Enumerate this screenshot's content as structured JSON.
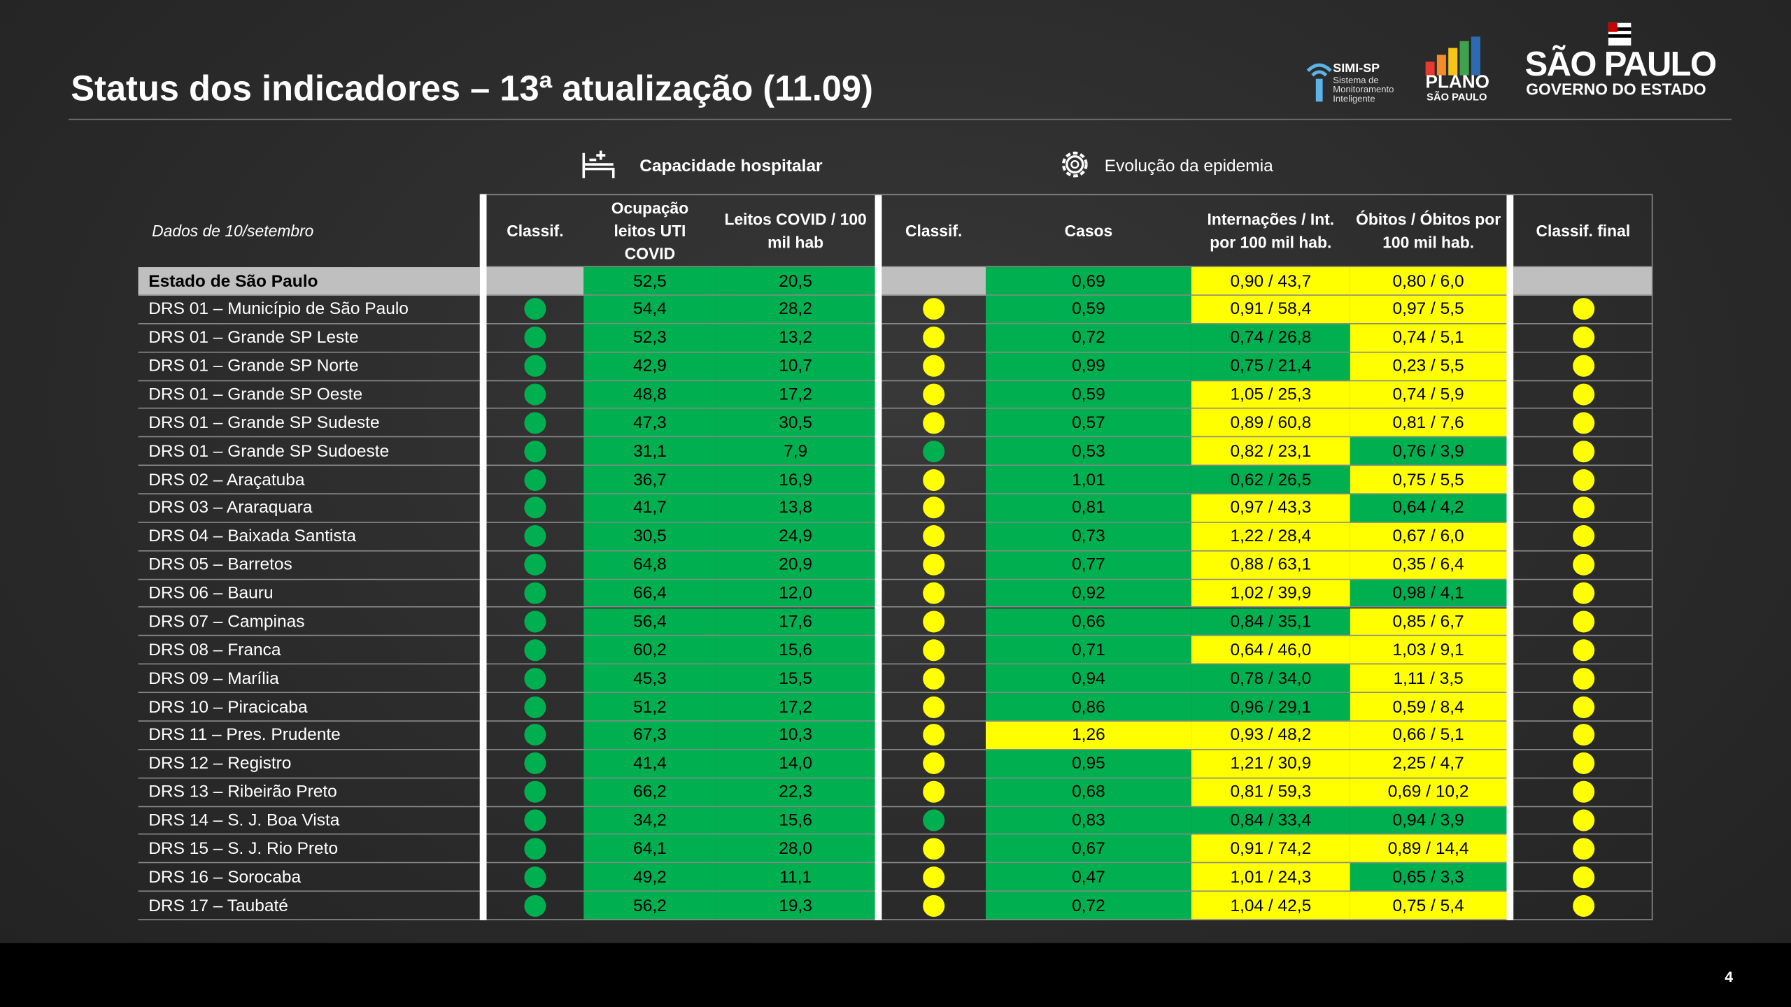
{
  "header": {
    "title": "Status dos indicadores – 13ª atualização (11.09)",
    "logos": {
      "simi": "SIMI-SP",
      "simi_sub": "Sistema de Monitoramento Inteligente",
      "plano": "PLANO",
      "plano_sub": "SÃO PAULO",
      "gov": "SÃO PAULO",
      "gov_sub": "GOVERNO DO ESTADO"
    }
  },
  "groups": {
    "hospital": "Capacidade hospitalar",
    "epidemia": "Evolução da epidemia"
  },
  "table": {
    "date_label": "Dados de 10/setembro",
    "columns": [
      "Classif.",
      "Ocupação leitos UTI COVID",
      "Leitos COVID / 100 mil hab",
      "Classif.",
      "Casos",
      "Internações / Int. por 100 mil hab.",
      "Óbitos / Óbitos por 100 mil hab.",
      "Classif. final"
    ],
    "blank_fill": "#bfbfbf",
    "state_row": {
      "name": "Estado de São Paulo",
      "values": [
        "52,5",
        "20,5",
        "0,69",
        "0,90 / 43,7",
        "0,80 / 6,0"
      ],
      "fills": [
        "#00b050",
        "#00b050",
        "#00b050",
        "#ffff00",
        "#ffff00"
      ]
    },
    "rows": [
      {
        "name": "DRS 01 – Município de São Paulo",
        "values": [
          "54,4",
          "28,2",
          "0,59",
          "0,91 / 58,4",
          "0,97 / 5,5"
        ],
        "fills": [
          "#00b050",
          "#00b050",
          "#00b050",
          "#ffff00",
          "#ffff00"
        ],
        "dots": [
          "#00b050",
          "#ffff00",
          "#ffff00"
        ]
      },
      {
        "name": "DRS 01 – Grande SP Leste",
        "values": [
          "52,3",
          "13,2",
          "0,72",
          "0,74 / 26,8",
          "0,74 / 5,1"
        ],
        "fills": [
          "#00b050",
          "#00b050",
          "#00b050",
          "#00b050",
          "#ffff00"
        ],
        "dots": [
          "#00b050",
          "#ffff00",
          "#ffff00"
        ]
      },
      {
        "name": "DRS 01 – Grande SP Norte",
        "values": [
          "42,9",
          "10,7",
          "0,99",
          "0,75 / 21,4",
          "0,23 / 5,5"
        ],
        "fills": [
          "#00b050",
          "#00b050",
          "#00b050",
          "#00b050",
          "#ffff00"
        ],
        "dots": [
          "#00b050",
          "#ffff00",
          "#ffff00"
        ]
      },
      {
        "name": "DRS 01 – Grande SP Oeste",
        "values": [
          "48,8",
          "17,2",
          "0,59",
          "1,05 / 25,3",
          "0,74 / 5,9"
        ],
        "fills": [
          "#00b050",
          "#00b050",
          "#00b050",
          "#ffff00",
          "#ffff00"
        ],
        "dots": [
          "#00b050",
          "#ffff00",
          "#ffff00"
        ]
      },
      {
        "name": "DRS 01 – Grande SP Sudeste",
        "values": [
          "47,3",
          "30,5",
          "0,57",
          "0,89 / 60,8",
          "0,81 / 7,6"
        ],
        "fills": [
          "#00b050",
          "#00b050",
          "#00b050",
          "#ffff00",
          "#ffff00"
        ],
        "dots": [
          "#00b050",
          "#ffff00",
          "#ffff00"
        ]
      },
      {
        "name": "DRS 01 – Grande SP Sudoeste",
        "values": [
          "31,1",
          "7,9",
          "0,53",
          "0,82 / 23,1",
          "0,76 / 3,9"
        ],
        "fills": [
          "#00b050",
          "#00b050",
          "#00b050",
          "#ffff00",
          "#00b050"
        ],
        "dots": [
          "#00b050",
          "#00b050",
          "#ffff00"
        ]
      },
      {
        "name": "DRS 02 – Araçatuba",
        "values": [
          "36,7",
          "16,9",
          "1,01",
          "0,62 / 26,5",
          "0,75 / 5,5"
        ],
        "fills": [
          "#00b050",
          "#00b050",
          "#00b050",
          "#00b050",
          "#ffff00"
        ],
        "dots": [
          "#00b050",
          "#ffff00",
          "#ffff00"
        ]
      },
      {
        "name": "DRS 03 – Araraquara",
        "values": [
          "41,7",
          "13,8",
          "0,81",
          "0,97 / 43,3",
          "0,64 / 4,2"
        ],
        "fills": [
          "#00b050",
          "#00b050",
          "#00b050",
          "#ffff00",
          "#00b050"
        ],
        "dots": [
          "#00b050",
          "#ffff00",
          "#ffff00"
        ]
      },
      {
        "name": "DRS 04 – Baixada Santista",
        "values": [
          "30,5",
          "24,9",
          "0,73",
          "1,22 / 28,4",
          "0,67 / 6,0"
        ],
        "fills": [
          "#00b050",
          "#00b050",
          "#00b050",
          "#ffff00",
          "#ffff00"
        ],
        "dots": [
          "#00b050",
          "#ffff00",
          "#ffff00"
        ]
      },
      {
        "name": "DRS 05 – Barretos",
        "values": [
          "64,8",
          "20,9",
          "0,77",
          "0,88 / 63,1",
          "0,35 / 6,4"
        ],
        "fills": [
          "#00b050",
          "#00b050",
          "#00b050",
          "#ffff00",
          "#ffff00"
        ],
        "dots": [
          "#00b050",
          "#ffff00",
          "#ffff00"
        ]
      },
      {
        "name": "DRS 06 – Bauru",
        "values": [
          "66,4",
          "12,0",
          "0,92",
          "1,02 / 39,9",
          "0,98 / 4,1"
        ],
        "fills": [
          "#00b050",
          "#00b050",
          "#00b050",
          "#ffff00",
          "#00b050"
        ],
        "dots": [
          "#00b050",
          "#ffff00",
          "#ffff00"
        ]
      },
      {
        "name": "DRS 07 – Campinas",
        "values": [
          "56,4",
          "17,6",
          "0,66",
          "0,84 / 35,1",
          "0,85 / 6,7"
        ],
        "fills": [
          "#00b050",
          "#00b050",
          "#00b050",
          "#00b050",
          "#ffff00"
        ],
        "dots": [
          "#00b050",
          "#ffff00",
          "#ffff00"
        ]
      },
      {
        "name": "DRS 08 – Franca",
        "values": [
          "60,2",
          "15,6",
          "0,71",
          "0,64 / 46,0",
          "1,03 / 9,1"
        ],
        "fills": [
          "#00b050",
          "#00b050",
          "#00b050",
          "#ffff00",
          "#ffff00"
        ],
        "dots": [
          "#00b050",
          "#ffff00",
          "#ffff00"
        ]
      },
      {
        "name": "DRS 09 – Marília",
        "values": [
          "45,3",
          "15,5",
          "0,94",
          "0,78 / 34,0",
          "1,11 / 3,5"
        ],
        "fills": [
          "#00b050",
          "#00b050",
          "#00b050",
          "#00b050",
          "#ffff00"
        ],
        "dots": [
          "#00b050",
          "#ffff00",
          "#ffff00"
        ]
      },
      {
        "name": "DRS 10 – Piracicaba",
        "values": [
          "51,2",
          "17,2",
          "0,86",
          "0,96 / 29,1",
          "0,59 / 8,4"
        ],
        "fills": [
          "#00b050",
          "#00b050",
          "#00b050",
          "#00b050",
          "#ffff00"
        ],
        "dots": [
          "#00b050",
          "#ffff00",
          "#ffff00"
        ]
      },
      {
        "name": "DRS 11 – Pres. Prudente",
        "values": [
          "67,3",
          "10,3",
          "1,26",
          "0,93 / 48,2",
          "0,66 / 5,1"
        ],
        "fills": [
          "#00b050",
          "#00b050",
          "#ffff00",
          "#ffff00",
          "#ffff00"
        ],
        "dots": [
          "#00b050",
          "#ffff00",
          "#ffff00"
        ]
      },
      {
        "name": "DRS 12 – Registro",
        "values": [
          "41,4",
          "14,0",
          "0,95",
          "1,21 / 30,9",
          "2,25 / 4,7"
        ],
        "fills": [
          "#00b050",
          "#00b050",
          "#00b050",
          "#ffff00",
          "#ffff00"
        ],
        "dots": [
          "#00b050",
          "#ffff00",
          "#ffff00"
        ]
      },
      {
        "name": "DRS 13 – Ribeirão Preto",
        "values": [
          "66,2",
          "22,3",
          "0,68",
          "0,81 / 59,3",
          "0,69 / 10,2"
        ],
        "fills": [
          "#00b050",
          "#00b050",
          "#00b050",
          "#ffff00",
          "#ffff00"
        ],
        "dots": [
          "#00b050",
          "#ffff00",
          "#ffff00"
        ]
      },
      {
        "name": "DRS 14 – S. J. Boa Vista",
        "values": [
          "34,2",
          "15,6",
          "0,83",
          "0,84 / 33,4",
          "0,94 / 3,9"
        ],
        "fills": [
          "#00b050",
          "#00b050",
          "#00b050",
          "#00b050",
          "#00b050"
        ],
        "dots": [
          "#00b050",
          "#00b050",
          "#ffff00"
        ]
      },
      {
        "name": "DRS 15 – S. J. Rio Preto",
        "values": [
          "64,1",
          "28,0",
          "0,67",
          "0,91 / 74,2",
          "0,89 / 14,4"
        ],
        "fills": [
          "#00b050",
          "#00b050",
          "#00b050",
          "#ffff00",
          "#ffff00"
        ],
        "dots": [
          "#00b050",
          "#ffff00",
          "#ffff00"
        ]
      },
      {
        "name": "DRS 16 – Sorocaba",
        "values": [
          "49,2",
          "11,1",
          "0,47",
          "1,01 / 24,3",
          "0,65 / 3,3"
        ],
        "fills": [
          "#00b050",
          "#00b050",
          "#00b050",
          "#ffff00",
          "#00b050"
        ],
        "dots": [
          "#00b050",
          "#ffff00",
          "#ffff00"
        ]
      },
      {
        "name": "DRS 17 – Taubaté",
        "values": [
          "56,2",
          "19,3",
          "0,72",
          "1,04 / 42,5",
          "0,75 / 5,4"
        ],
        "fills": [
          "#00b050",
          "#00b050",
          "#00b050",
          "#ffff00",
          "#ffff00"
        ],
        "dots": [
          "#00b050",
          "#ffff00",
          "#ffff00"
        ]
      }
    ]
  },
  "footer": {
    "page": "4"
  }
}
